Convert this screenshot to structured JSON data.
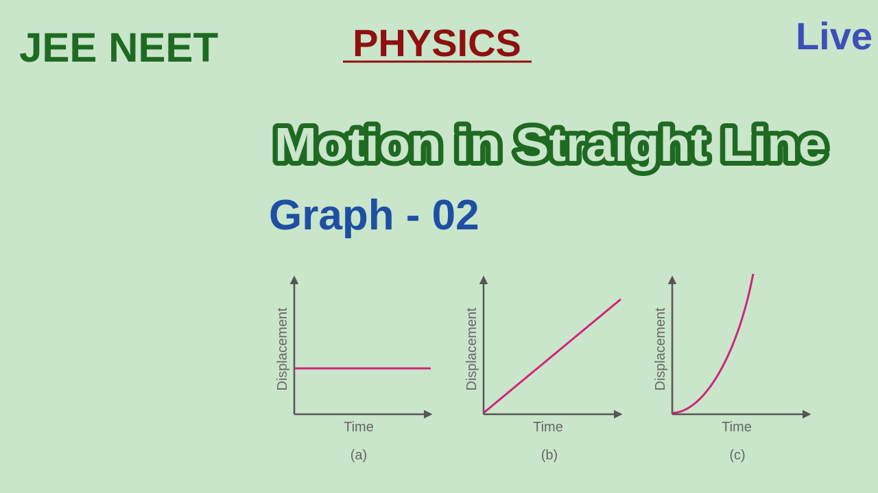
{
  "header": {
    "left": "JEE NEET",
    "center": "PHYSICS",
    "right": "Live"
  },
  "title": "Motion in Straight Line",
  "subtitle": "Graph - 02",
  "graphs": [
    {
      "y_label": "Displacement",
      "x_label": "Time",
      "caption": "(a)"
    },
    {
      "y_label": "Displacement",
      "x_label": "Time",
      "caption": "(b)"
    },
    {
      "y_label": "Displacement",
      "x_label": "Time",
      "caption": "(c)"
    }
  ]
}
